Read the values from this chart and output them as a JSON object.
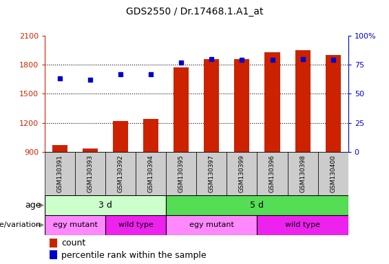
{
  "title": "GDS2550 / Dr.17468.1.A1_at",
  "samples": [
    "GSM130391",
    "GSM130393",
    "GSM130392",
    "GSM130394",
    "GSM130395",
    "GSM130397",
    "GSM130399",
    "GSM130396",
    "GSM130398",
    "GSM130400"
  ],
  "counts": [
    970,
    935,
    1215,
    1240,
    1770,
    1860,
    1855,
    1930,
    1950,
    1900
  ],
  "percentiles": [
    63,
    62,
    67,
    67,
    77,
    80,
    79,
    79,
    80,
    79
  ],
  "y_min": 900,
  "y_max": 2100,
  "y_ticks": [
    900,
    1200,
    1500,
    1800,
    2100
  ],
  "y2_ticks": [
    0,
    25,
    50,
    75,
    100
  ],
  "bar_color": "#cc2200",
  "dot_color": "#0000cc",
  "bar_width": 0.5,
  "age_3d_label": "3 d",
  "age_5d_label": "5 d",
  "geno_egy_label": "egy mutant",
  "geno_wild_label": "wild type",
  "age_row_label": "age",
  "geno_row_label": "genotype/variation",
  "legend_count_label": "count",
  "legend_pct_label": "percentile rank within the sample",
  "age_3d_color": "#ccffcc",
  "age_5d_color": "#55dd55",
  "geno_egy_color": "#ff88ff",
  "geno_wild_color": "#ee22ee",
  "tick_bg_color": "#cccccc",
  "left_axis_color": "#cc2200",
  "right_axis_color": "#0000cc",
  "title_fontsize": 10,
  "tick_fontsize": 8,
  "label_fontsize": 9,
  "sample_fontsize": 6.5
}
